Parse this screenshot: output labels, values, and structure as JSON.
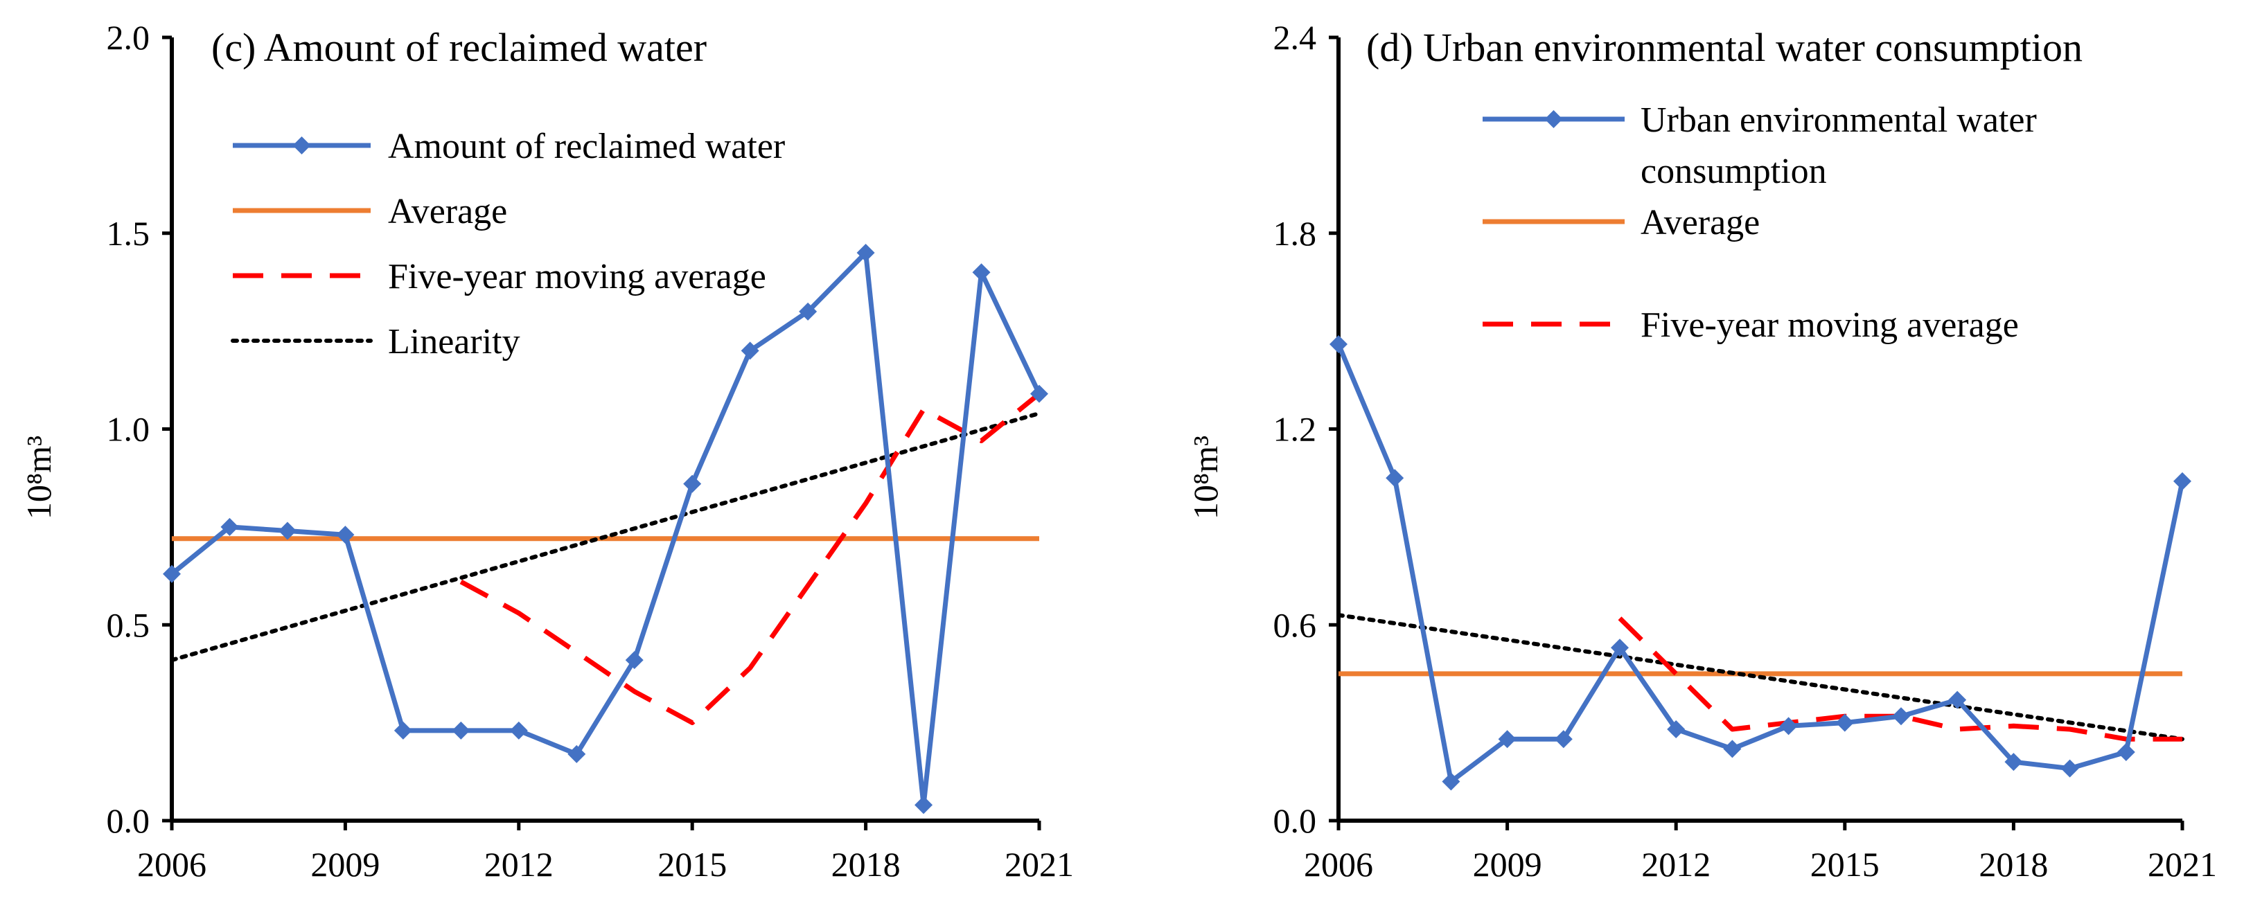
{
  "colors": {
    "series": "#4472C4",
    "average": "#ED7D31",
    "moving_average": "#FF0000",
    "linearity": "#000000",
    "axis": "#000000"
  },
  "chart_data": [
    {
      "type": "line",
      "title": "(c) Amount of reclaimed water",
      "ylabel": "10⁸m³",
      "xlabel": "",
      "xlim": [
        2006,
        2021
      ],
      "ylim": [
        0,
        2.0
      ],
      "xticks": [
        "2006",
        "2009",
        "2012",
        "2015",
        "2018",
        "2021"
      ],
      "yticks": [
        "0.0",
        "0.5",
        "1.0",
        "1.5",
        "2.0"
      ],
      "ytick_values": [
        0,
        0.5,
        1.0,
        1.5,
        2.0
      ],
      "legend_position": "top-left",
      "series": [
        {
          "name": "Amount of reclaimed water",
          "legend_label": [
            "Amount of reclaimed water"
          ],
          "style": "line-diamond",
          "x": [
            2006,
            2007,
            2008,
            2009,
            2010,
            2011,
            2012,
            2013,
            2014,
            2015,
            2016,
            2017,
            2018,
            2019,
            2020,
            2021
          ],
          "values": [
            0.63,
            0.75,
            0.74,
            0.73,
            0.23,
            0.23,
            0.23,
            0.17,
            0.41,
            0.86,
            1.2,
            1.3,
            1.45,
            0.04,
            1.4,
            1.09
          ]
        },
        {
          "name": "Average",
          "legend_label": [
            "Average"
          ],
          "style": "solid",
          "x": [
            2006,
            2021
          ],
          "values": [
            0.72,
            0.72
          ]
        },
        {
          "name": "Five-year moving average",
          "legend_label": [
            "Five-year moving average"
          ],
          "style": "dashed",
          "x": [
            2011,
            2012,
            2013,
            2014,
            2015,
            2016,
            2017,
            2018,
            2019,
            2020,
            2021
          ],
          "values": [
            0.61,
            0.53,
            0.43,
            0.33,
            0.25,
            0.39,
            0.6,
            0.81,
            1.05,
            0.97,
            1.09
          ]
        },
        {
          "name": "Linearity",
          "legend_label": [
            "Linearity"
          ],
          "style": "dotted",
          "x": [
            2006,
            2021
          ],
          "values": [
            0.41,
            1.04
          ]
        }
      ]
    },
    {
      "type": "line",
      "title": "(d) Urban environmental water consumption",
      "ylabel": "10⁸m³",
      "xlabel": "",
      "xlim": [
        2006,
        2021
      ],
      "ylim": [
        0,
        2.4
      ],
      "xticks": [
        "2006",
        "2009",
        "2012",
        "2015",
        "2018",
        "2021"
      ],
      "yticks": [
        "0.0",
        "0.6",
        "1.2",
        "1.8",
        "2.4"
      ],
      "ytick_values": [
        0,
        0.6,
        1.2,
        1.8,
        2.4
      ],
      "legend_position": "top-right",
      "series": [
        {
          "name": "Urban environmental water consumption",
          "legend_label": [
            "Urban environmental water",
            "consumption"
          ],
          "style": "line-diamond",
          "x": [
            2006,
            2007,
            2008,
            2009,
            2010,
            2011,
            2012,
            2013,
            2014,
            2015,
            2016,
            2017,
            2018,
            2019,
            2020,
            2021
          ],
          "values": [
            1.46,
            1.05,
            0.12,
            0.25,
            0.25,
            0.53,
            0.28,
            0.22,
            0.29,
            0.3,
            0.32,
            0.37,
            0.18,
            0.16,
            0.21,
            1.04
          ]
        },
        {
          "name": "Average",
          "legend_label": [
            "Average"
          ],
          "style": "solid",
          "x": [
            2006,
            2021
          ],
          "values": [
            0.45,
            0.45
          ]
        },
        {
          "name": "Five-year moving average",
          "legend_label": [
            "Five-year moving average"
          ],
          "style": "dashed",
          "x": [
            2011,
            2012,
            2013,
            2014,
            2015,
            2016,
            2017,
            2018,
            2019,
            2020,
            2021
          ],
          "values": [
            0.62,
            0.45,
            0.28,
            0.3,
            0.32,
            0.32,
            0.28,
            0.29,
            0.28,
            0.25,
            0.25
          ]
        },
        {
          "name": "Linearity",
          "legend_label": [],
          "style": "dotted",
          "x": [
            2006,
            2021
          ],
          "values": [
            0.63,
            0.25
          ]
        }
      ]
    }
  ]
}
